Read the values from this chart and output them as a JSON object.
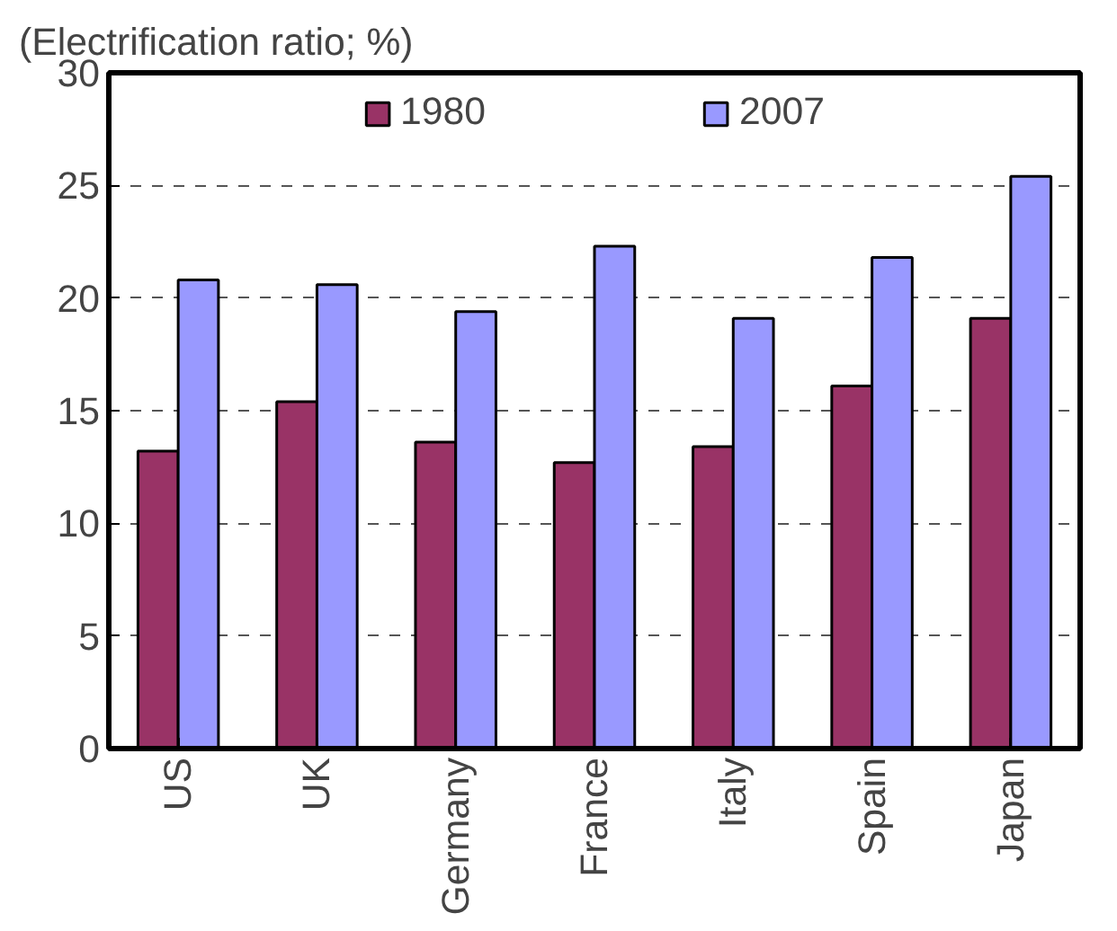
{
  "chart_data": {
    "type": "bar",
    "ylabel": "(Electrification ratio; %)",
    "categories": [
      "US",
      "UK",
      "Germany",
      "France",
      "Italy",
      "Spain",
      "Japan"
    ],
    "series": [
      {
        "name": "1980",
        "color": "#993366",
        "values": [
          13.2,
          15.4,
          13.6,
          12.7,
          13.4,
          16.1,
          19.1
        ]
      },
      {
        "name": "2007",
        "color": "#9999ff",
        "values": [
          20.8,
          20.6,
          19.4,
          22.3,
          19.1,
          21.8,
          25.4
        ]
      }
    ],
    "ylim": [
      0,
      30
    ],
    "yticks": [
      0,
      5,
      10,
      15,
      20,
      25,
      30
    ],
    "grid": "y",
    "legend": "top"
  }
}
